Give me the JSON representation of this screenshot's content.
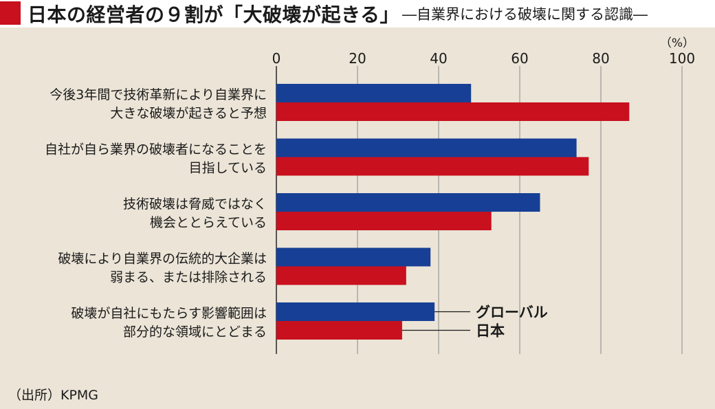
{
  "header": {
    "title": "日本の経営者の９割が「大破壊が起きる」",
    "subtitle": "―自業界における破壊に関する認識―"
  },
  "colors": {
    "global": "#173f95",
    "japan": "#c8101e",
    "accent": "#c8101e",
    "background": "#ebe4d7",
    "header_bg": "#ffffff"
  },
  "chart_data": {
    "type": "bar",
    "orientation": "horizontal",
    "unit": "（%）",
    "xlim": [
      0,
      100
    ],
    "x_ticks": [
      "0",
      "20",
      "40",
      "60",
      "80",
      "100"
    ],
    "grid": true,
    "categories": [
      [
        "今後3年間で技術革新により自業界に",
        "大きな破壊が起きると予想"
      ],
      [
        "自社が自ら業界の破壊者になることを",
        "目指している"
      ],
      [
        "技術破壊は脅威ではなく",
        "機会ととらえている"
      ],
      [
        "破壊により自業界の伝統的大企業は",
        "弱まる、または排除される"
      ],
      [
        "破壊が自社にもたらす影響範囲は",
        "部分的な領域にとどまる"
      ]
    ],
    "series": [
      {
        "name": "グローバル",
        "values": [
          48,
          74,
          65,
          38,
          39
        ]
      },
      {
        "name": "日本",
        "values": [
          87,
          77,
          53,
          32,
          31
        ]
      }
    ],
    "legend_placement": "inline-right-of-last-bars"
  },
  "source": "（出所）KPMG"
}
